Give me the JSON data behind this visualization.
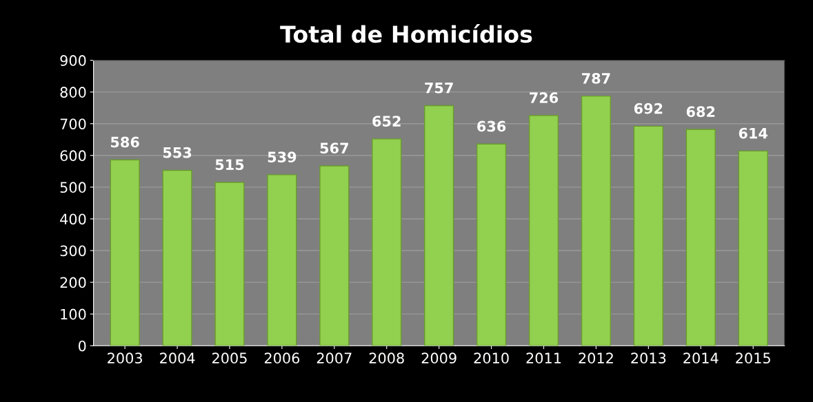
{
  "chart_data": {
    "type": "bar",
    "title": "Total de Homicídios",
    "categories": [
      "2003",
      "2004",
      "2005",
      "2006",
      "2007",
      "2008",
      "2009",
      "2010",
      "2011",
      "2012",
      "2013",
      "2014",
      "2015"
    ],
    "values": [
      586,
      553,
      515,
      539,
      567,
      652,
      757,
      636,
      726,
      787,
      692,
      682,
      614
    ],
    "color": "#92d050",
    "ylim": [
      0,
      900
    ],
    "yticks": [
      0,
      100,
      200,
      300,
      400,
      500,
      600,
      700,
      800,
      900
    ],
    "grid": "y",
    "data_labels": true
  }
}
